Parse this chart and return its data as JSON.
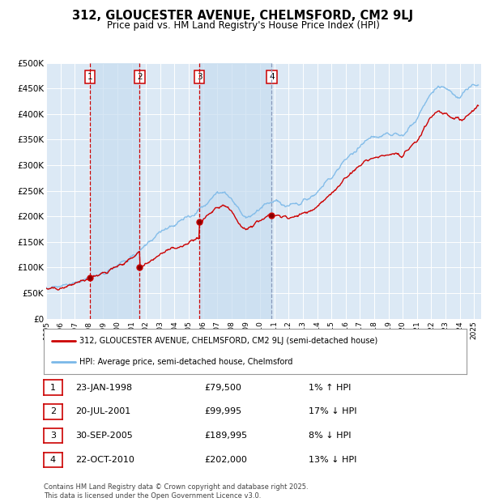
{
  "title_line1": "312, GLOUCESTER AVENUE, CHELMSFORD, CM2 9LJ",
  "title_line2": "Price paid vs. HM Land Registry's House Price Index (HPI)",
  "ylabel_ticks": [
    "£0",
    "£50K",
    "£100K",
    "£150K",
    "£200K",
    "£250K",
    "£300K",
    "£350K",
    "£400K",
    "£450K",
    "£500K"
  ],
  "ytick_values": [
    0,
    50000,
    100000,
    150000,
    200000,
    250000,
    300000,
    350000,
    400000,
    450000,
    500000
  ],
  "ylim": [
    0,
    500000
  ],
  "xlim_start": 1995.0,
  "xlim_end": 2025.5,
  "bg_color": "#dce9f5",
  "hpi_line_color": "#7ab8e8",
  "price_line_color": "#cc0000",
  "vline_color_red": "#cc0000",
  "vline_color_blue": "#8899bb",
  "shade_color": "#c8ddf0",
  "legend_label_price": "312, GLOUCESTER AVENUE, CHELMSFORD, CM2 9LJ (semi-detached house)",
  "legend_label_hpi": "HPI: Average price, semi-detached house, Chelmsford",
  "transactions": [
    {
      "num": 1,
      "date": "23-JAN-1998",
      "price": 79500,
      "pct": "1%",
      "dir": "↑",
      "year": 1998.06,
      "vline": "red"
    },
    {
      "num": 2,
      "date": "20-JUL-2001",
      "price": 99995,
      "pct": "17%",
      "dir": "↓",
      "year": 2001.55,
      "vline": "red"
    },
    {
      "num": 3,
      "date": "30-SEP-2005",
      "price": 189995,
      "pct": "8%",
      "dir": "↓",
      "year": 2005.75,
      "vline": "red"
    },
    {
      "num": 4,
      "date": "22-OCT-2010",
      "price": 202000,
      "pct": "13%",
      "dir": "↓",
      "year": 2010.81,
      "vline": "blue"
    }
  ],
  "footer_text": "Contains HM Land Registry data © Crown copyright and database right 2025.\nThis data is licensed under the Open Government Licence v3.0.",
  "xtick_years": [
    1995,
    1996,
    1997,
    1998,
    1999,
    2000,
    2001,
    2002,
    2003,
    2004,
    2005,
    2006,
    2007,
    2008,
    2009,
    2010,
    2011,
    2012,
    2013,
    2014,
    2015,
    2016,
    2017,
    2018,
    2019,
    2020,
    2021,
    2022,
    2023,
    2024,
    2025
  ]
}
